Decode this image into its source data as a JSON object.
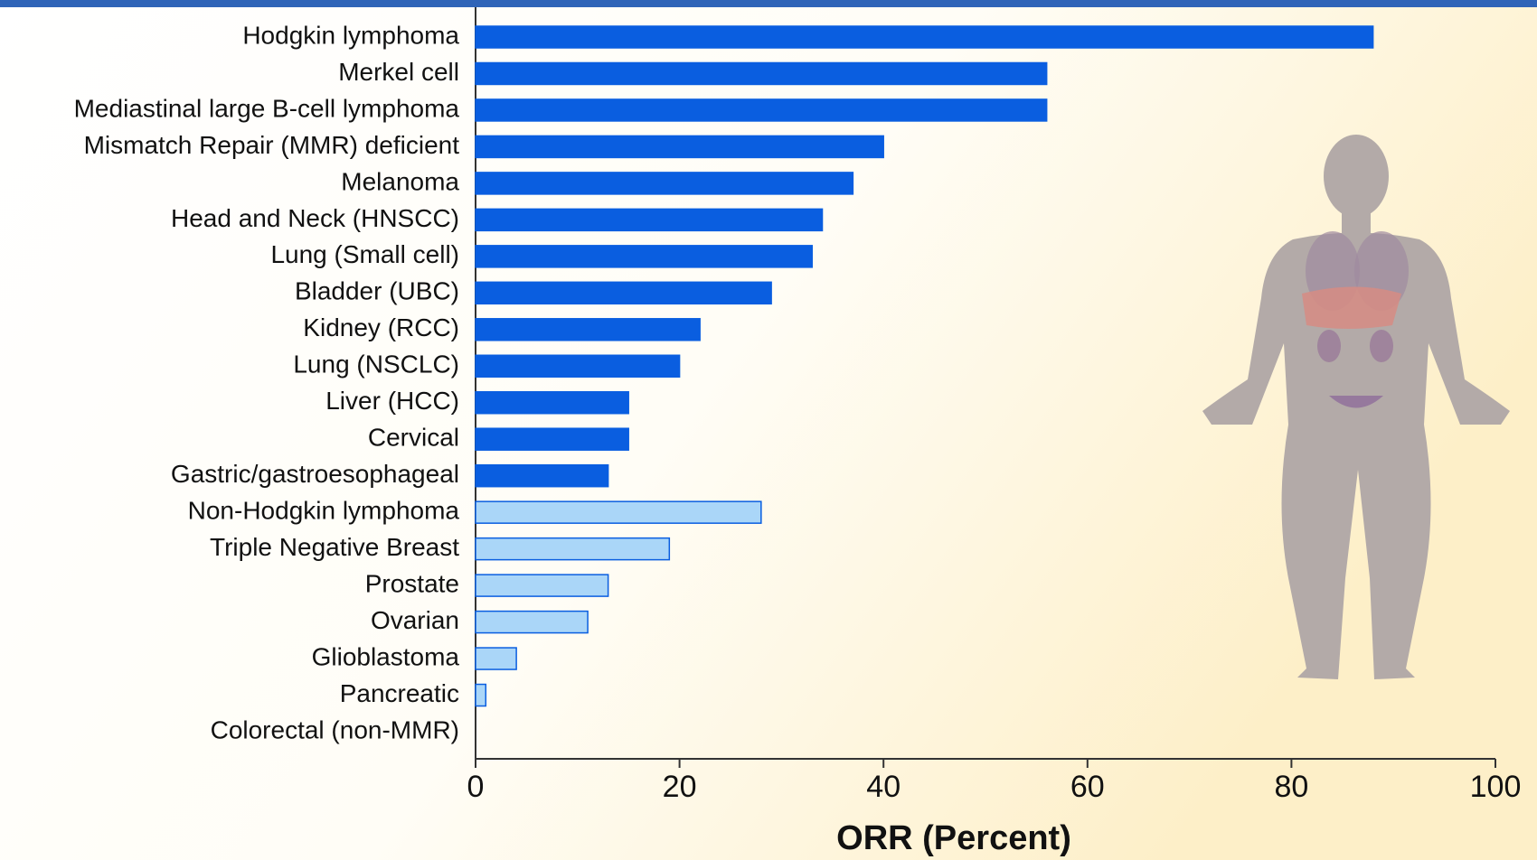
{
  "chart_data": {
    "type": "hbar",
    "xlabel": "ORR (Percent)",
    "categories": [
      "Hodgkin lymphoma",
      "Merkel cell",
      "Mediastinal large B-cell lymphoma",
      "Mismatch Repair (MMR) deficient",
      "Melanoma",
      "Head and Neck (HNSCC)",
      "Lung (Small cell)",
      "Bladder (UBC)",
      "Kidney (RCC)",
      "Lung (NSCLC)",
      "Liver (HCC)",
      "Cervical",
      "Gastric/gastroesophageal",
      "Non-Hodgkin lymphoma",
      "Triple Negative Breast",
      "Prostate",
      "Ovarian",
      "Glioblastoma",
      "Pancreatic",
      "Colorectal (non-MMR)"
    ],
    "values": [
      88,
      56,
      56,
      40,
      37,
      34,
      33,
      29,
      22,
      20,
      15,
      15,
      13,
      28,
      19,
      13,
      11,
      4,
      1,
      0
    ],
    "colors": [
      "#0a5ee0",
      "#0a5ee0",
      "#0a5ee0",
      "#0a5ee0",
      "#0a5ee0",
      "#0a5ee0",
      "#0a5ee0",
      "#0a5ee0",
      "#0a5ee0",
      "#0a5ee0",
      "#0a5ee0",
      "#0a5ee0",
      "#0a5ee0",
      "#aad6f8",
      "#aad6f8",
      "#aad6f8",
      "#aad6f8",
      "#aad6f8",
      "#aad6f8",
      "#aad6f8"
    ],
    "xlim": [
      0,
      100
    ],
    "xticks": [
      0,
      20,
      40,
      60,
      80,
      100
    ]
  }
}
